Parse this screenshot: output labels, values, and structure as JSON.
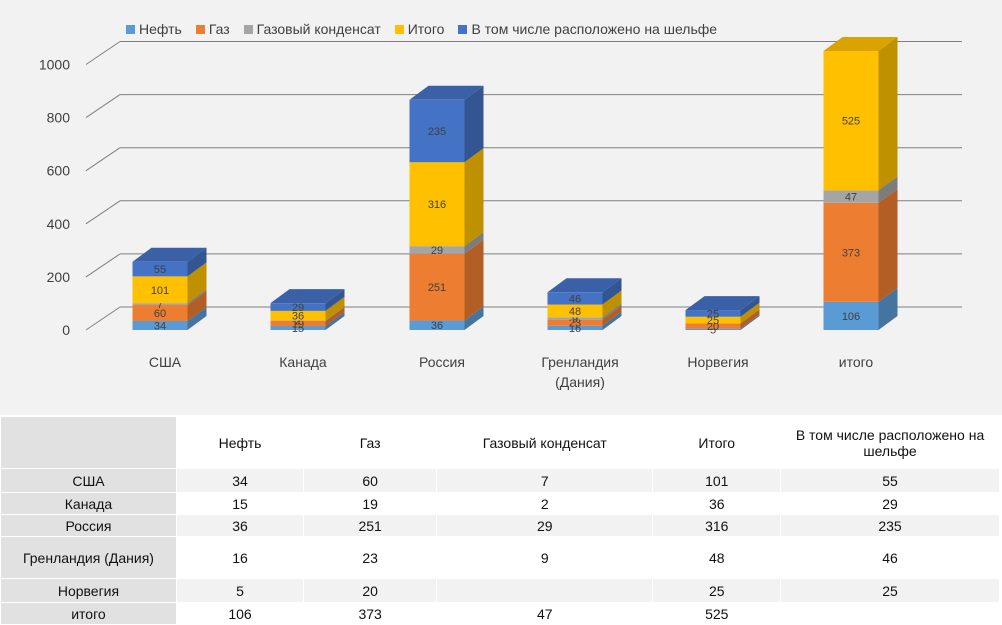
{
  "chart_data": {
    "type": "bar",
    "stacked": true,
    "three_d": true,
    "categories": [
      "США",
      "Канада",
      "Россия",
      "Гренландия (Дания)",
      "Норвегия",
      "итого"
    ],
    "series": [
      {
        "name": "Нефть",
        "color": "#5b9bd5",
        "values": [
          34,
          15,
          36,
          16,
          5,
          106
        ]
      },
      {
        "name": "Газ",
        "color": "#ed7d31",
        "values": [
          60,
          19,
          251,
          23,
          20,
          373
        ]
      },
      {
        "name": "Газовый конденсат",
        "color": "#a5a5a5",
        "values": [
          7,
          2,
          29,
          9,
          null,
          47
        ]
      },
      {
        "name": "Итого",
        "color": "#ffc000",
        "values": [
          101,
          36,
          316,
          48,
          25,
          525
        ]
      },
      {
        "name": "В том числе расположено на шельфе",
        "color": "#4472c4",
        "values": [
          55,
          29,
          235,
          46,
          25,
          null
        ]
      }
    ],
    "ylim": [
      0,
      1000
    ],
    "yticks": [
      0,
      200,
      400,
      600,
      800,
      1000
    ],
    "grid": true,
    "legend_position": "top"
  },
  "table": {
    "headers": [
      "Нефть",
      "Газ",
      "Газовый конденсат",
      "Итого",
      "В том числе расположено на шельфе"
    ],
    "rows": [
      {
        "label": "США",
        "values": [
          "34",
          "60",
          "7",
          "101",
          "55"
        ]
      },
      {
        "label": "Канада",
        "values": [
          "15",
          "19",
          "2",
          "36",
          "29"
        ]
      },
      {
        "label": "Россия",
        "values": [
          "36",
          "251",
          "29",
          "316",
          "235"
        ]
      },
      {
        "label": "Гренландия (Дания)",
        "values": [
          "16",
          "23",
          "9",
          "48",
          "46"
        ]
      },
      {
        "label": "Норвегия",
        "values": [
          "5",
          "20",
          "",
          "25",
          "25"
        ]
      },
      {
        "label": "итого",
        "values": [
          "106",
          "373",
          "47",
          "525",
          ""
        ]
      }
    ]
  }
}
